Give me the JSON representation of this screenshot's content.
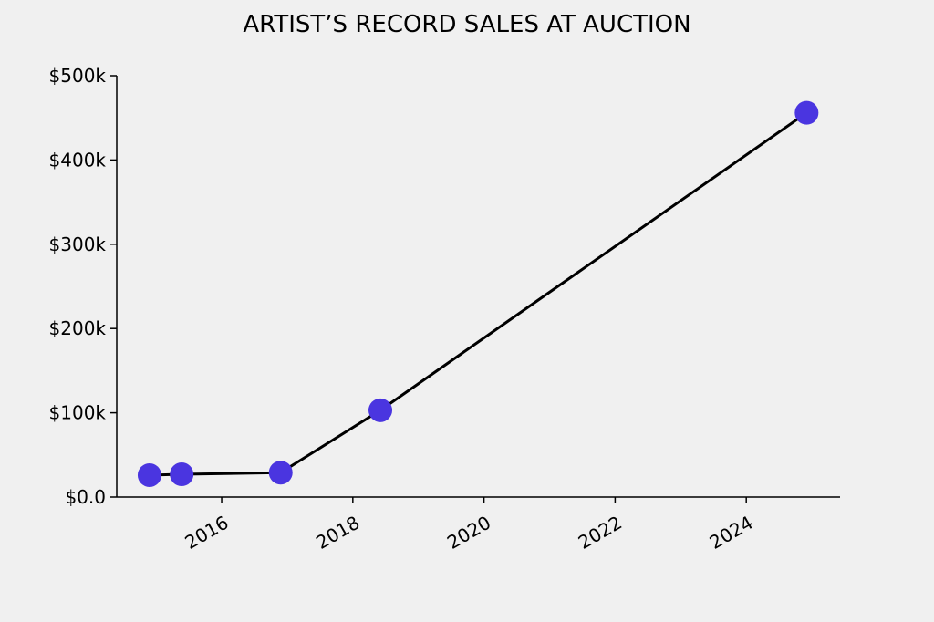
{
  "chart_data": {
    "type": "line",
    "title": "ARTIST’S RECORD SALES AT AUCTION",
    "x": [
      2014.9,
      2015.39,
      2016.9,
      2018.42,
      2024.92
    ],
    "series": [
      {
        "values": [
          26000,
          27000,
          29000,
          103000,
          456000
        ],
        "color": "#000000",
        "marker_color": "#4a35e0"
      }
    ],
    "xlim": [
      2014.4,
      2025.43
    ],
    "xticks": [
      2016,
      2018,
      2020,
      2022,
      2024
    ],
    "ylim": [
      0,
      500000
    ],
    "yticks": [
      {
        "value": 0,
        "label": "$0.0"
      },
      {
        "value": 100000,
        "label": "$100k"
      },
      {
        "value": 200000,
        "label": "$200k"
      },
      {
        "value": 300000,
        "label": "$300k"
      },
      {
        "value": 400000,
        "label": "$400k"
      },
      {
        "value": 500000,
        "label": "$500k"
      }
    ],
    "grid": false
  }
}
